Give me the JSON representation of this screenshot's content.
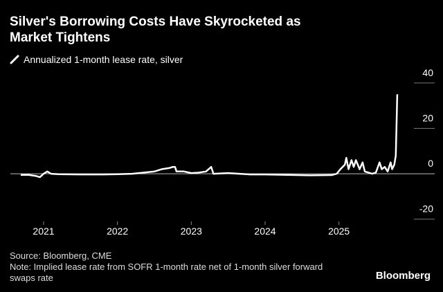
{
  "chart_data": {
    "type": "line",
    "title": "Silver's Borrowing Costs Have Skyrocketed as Market Tightens",
    "source": "Source: Bloomberg, CME",
    "note": "Note: Implied lease rate from SOFR 1-month rate net of 1-month silver forward swaps rate",
    "brand": "Bloomberg",
    "series": [
      {
        "name": "Annualized 1-month lease rate, silver",
        "color": "#ffffff",
        "x": [
          2020.69,
          2020.8,
          2020.9,
          2020.95,
          2021.0,
          2021.05,
          2021.1,
          2021.2,
          2021.5,
          2021.8,
          2022.0,
          2022.2,
          2022.35,
          2022.5,
          2022.6,
          2022.7,
          2022.75,
          2022.78,
          2022.8,
          2022.9,
          2023.0,
          2023.1,
          2023.2,
          2023.27,
          2023.3,
          2023.5,
          2023.8,
          2024.0,
          2024.3,
          2024.6,
          2024.9,
          2024.97,
          2025.02,
          2025.08,
          2025.1,
          2025.13,
          2025.17,
          2025.2,
          2025.23,
          2025.28,
          2025.32,
          2025.35,
          2025.45,
          2025.5,
          2025.55,
          2025.58,
          2025.62,
          2025.66,
          2025.7,
          2025.72,
          2025.75,
          2025.77,
          2025.79
        ],
        "values": [
          -0.5,
          -0.5,
          -1,
          -1.5,
          0,
          1,
          0,
          -0.2,
          -0.3,
          -0.3,
          -0.2,
          0,
          0.5,
          1,
          2,
          2.5,
          3,
          3,
          1,
          1,
          0.3,
          0.5,
          1,
          3,
          0,
          0.3,
          -0.3,
          -0.3,
          -0.5,
          -0.7,
          -0.6,
          0,
          2,
          4,
          7,
          2,
          6,
          3,
          6,
          2,
          5,
          1,
          0,
          0.5,
          5,
          2,
          3,
          1,
          5,
          2,
          4,
          8,
          35
        ]
      }
    ],
    "xlim": [
      2020.55,
      2025.95
    ],
    "xticks": [
      2021,
      2022,
      2023,
      2024,
      2025
    ],
    "ylim": [
      -21,
      43
    ],
    "yticks": [
      -20,
      0,
      20,
      40
    ]
  }
}
